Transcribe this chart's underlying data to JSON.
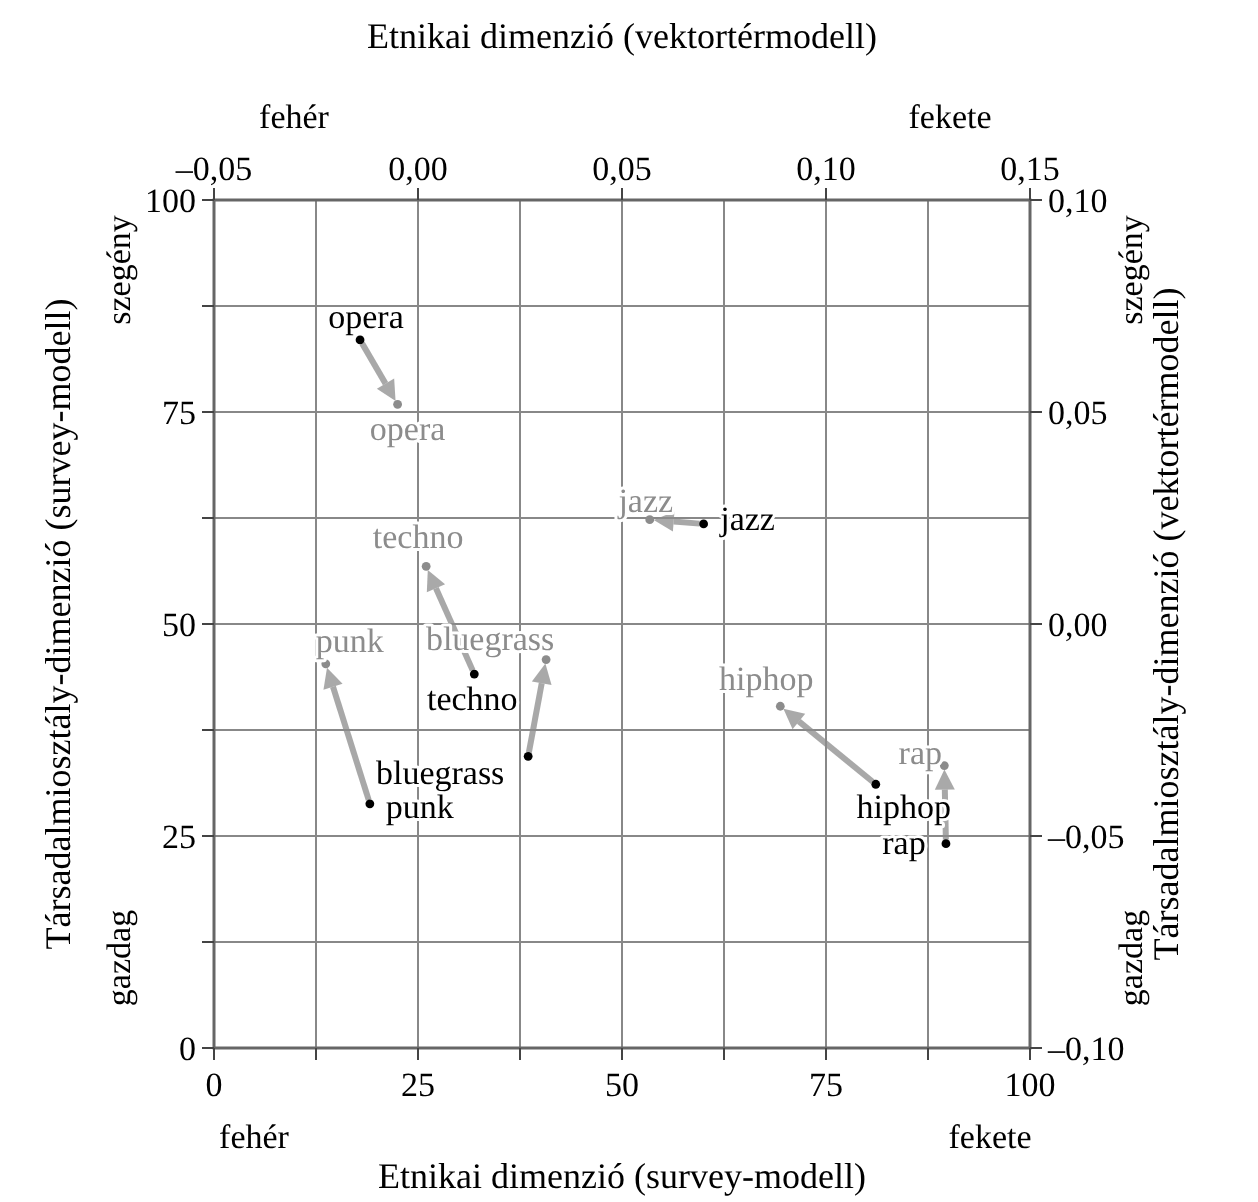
{
  "chart_data": {
    "type": "scatter",
    "xlabel": "Etnikai dimenzió (survey-modell)",
    "x2label": "Etnikai dimenzió (vektortérmodell)",
    "ylabel": "Társadalmiosztály-dimenzió (survey-modell)",
    "y2label": "Társadalmiosztály-dimenzió (vektortérmodell)",
    "xlim": [
      0,
      100
    ],
    "xticks": [
      0,
      {
        "value": 12.5,
        "label": null
      },
      25,
      {
        "value": 37.5,
        "label": null
      },
      50,
      {
        "value": 62.5,
        "label": null
      },
      75,
      {
        "value": 87.5,
        "label": null
      },
      100
    ],
    "ylim": [
      0,
      100
    ],
    "yticks": [
      0,
      {
        "value": 12.5,
        "label": null
      },
      25,
      {
        "value": 37.5,
        "label": null
      },
      50,
      {
        "value": 62.5,
        "label": null
      },
      75,
      {
        "value": 87.5,
        "label": null
      },
      100
    ],
    "x2lim": [
      -0.05,
      0.15
    ],
    "x2ticks": [
      {
        "value": -0.05,
        "label": "–0,05"
      },
      {
        "value": 0,
        "label": "0,00"
      },
      {
        "value": 0.05,
        "label": "0,05"
      },
      {
        "value": 0.1,
        "label": "0,10"
      },
      {
        "value": 0.15,
        "label": "0,15"
      }
    ],
    "y2lim": [
      -0.1,
      0.1
    ],
    "y2ticks": [
      {
        "value": -0.1,
        "label": "–0,10"
      },
      {
        "value": -0.05,
        "label": "–0,05"
      },
      {
        "value": 0,
        "label": "0,00"
      },
      {
        "value": 0.05,
        "label": "0,05"
      },
      {
        "value": 0.1,
        "label": "0,10"
      }
    ],
    "grid": true,
    "marker": "circle",
    "series": [
      {
        "color": "#000000",
        "x": [
          17.9,
          60.0,
          31.9,
          38.5,
          19.1,
          81.1,
          89.7
        ],
        "values": [
          83.5,
          61.8,
          44.1,
          34.4,
          28.8,
          31.1,
          24.1
        ],
        "value_labels": [
          "opera",
          "jazz",
          "techno",
          "bluegrass",
          "punk",
          "hiphop",
          "rap"
        ]
      },
      {
        "color": "#8c8c8c",
        "x": [
          22.5,
          53.4,
          26.0,
          40.7,
          13.7,
          69.4,
          89.5
        ],
        "values": [
          75.9,
          62.3,
          56.8,
          45.8,
          45.3,
          40.3,
          33.3
        ],
        "value_labels": [
          "opera",
          "jazz",
          "techno",
          "bluegrass",
          "punk",
          "hiphop",
          "rap"
        ]
      }
    ],
    "annotations": [
      "fehér",
      "fekete",
      "fehér",
      "fekete",
      "szegény",
      "gazdag",
      "szegény",
      "gazdag"
    ]
  }
}
